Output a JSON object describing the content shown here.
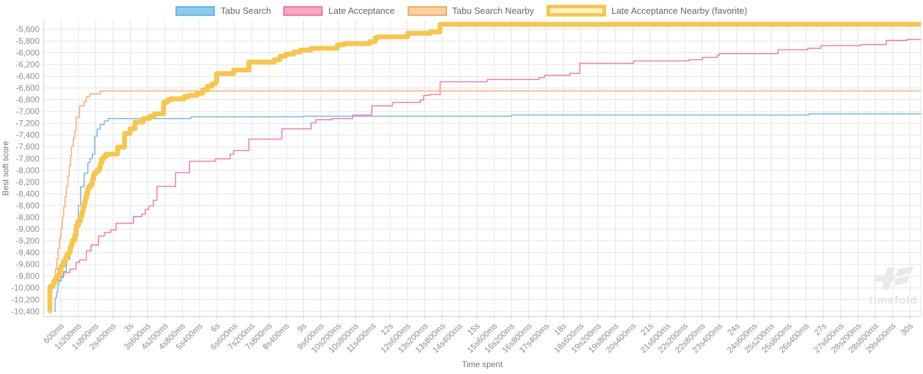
{
  "legend": {
    "items": [
      {
        "label": "Tabu Search",
        "line_color": "#68B1E4",
        "fill_color": "#8CCBF0",
        "favorite": false
      },
      {
        "label": "Late Acceptance",
        "line_color": "#F0739E",
        "fill_color": "#F8A8C0",
        "favorite": false
      },
      {
        "label": "Tabu Search Nearby",
        "line_color": "#F5A760",
        "fill_color": "#FAD0A0",
        "favorite": false
      },
      {
        "label": "Late Acceptance Nearby (favorite)",
        "line_color": "#F7C64B",
        "fill_color": "#FCF0C8",
        "favorite": true
      }
    ]
  },
  "watermark": {
    "text": "timefold"
  },
  "chart_data": {
    "type": "line",
    "step": true,
    "title": "",
    "xlabel": "Time spent",
    "ylabel": "Best soft score",
    "grid": true,
    "legend_position": "top",
    "xlim_ms": [
      0,
      30350
    ],
    "ylim": [
      -10400,
      -5515
    ],
    "x_tick_step_ms": 600,
    "x_ticks": [
      "600ms",
      "1s200ms",
      "1s800ms",
      "2s400ms",
      "3s",
      "3s600ms",
      "4s200ms",
      "4s800ms",
      "5s400ms",
      "6s",
      "6s600ms",
      "7s200ms",
      "7s800ms",
      "8s400ms",
      "9s",
      "9s600ms",
      "10s200ms",
      "10s800ms",
      "11s400ms",
      "12s",
      "12s600ms",
      "13s200ms",
      "13s800ms",
      "14s400ms",
      "15s",
      "15s600ms",
      "16s200ms",
      "16s800ms",
      "17s400ms",
      "18s",
      "18s600ms",
      "19s200ms",
      "19s800ms",
      "20s400ms",
      "21s",
      "21s600ms",
      "22s200ms",
      "22s800ms",
      "23s400ms",
      "24s",
      "24s600ms",
      "25s200ms",
      "25s800ms",
      "26s400ms",
      "27s",
      "27s600ms",
      "28s200ms",
      "28s800ms",
      "29s400ms",
      "30s"
    ],
    "y_tick_step": -200,
    "y_ticks": [
      "-5,600",
      "-5,800",
      "-6,000",
      "-6,200",
      "-6,400",
      "-6,600",
      "-6,800",
      "-7,000",
      "-7,200",
      "-7,400",
      "-7,600",
      "-7,800",
      "-8,000",
      "-8,200",
      "-8,400",
      "-8,600",
      "-8,800",
      "-9,000",
      "-9,200",
      "-9,400",
      "-9,600",
      "-9,800",
      "-10,000",
      "-10,200",
      "-10,400"
    ],
    "series": [
      {
        "name": "Tabu Search",
        "color": "#68B1E4",
        "width": 1.4,
        "final_score": -7040,
        "points": [
          [
            360,
            -10400
          ],
          [
            395,
            -10170
          ],
          [
            450,
            -10070
          ],
          [
            490,
            -9940
          ],
          [
            530,
            -9880
          ],
          [
            615,
            -9820
          ],
          [
            680,
            -9720
          ],
          [
            790,
            -9510
          ],
          [
            910,
            -9310
          ],
          [
            1000,
            -9150
          ],
          [
            1060,
            -9000
          ],
          [
            1125,
            -8860
          ],
          [
            1200,
            -8600
          ],
          [
            1280,
            -8280
          ],
          [
            1400,
            -8050
          ],
          [
            1530,
            -7870
          ],
          [
            1600,
            -7800
          ],
          [
            1685,
            -7725
          ],
          [
            1765,
            -7420
          ],
          [
            1850,
            -7300
          ],
          [
            1960,
            -7220
          ],
          [
            2100,
            -7160
          ],
          [
            2240,
            -7120
          ],
          [
            5100,
            -7090
          ],
          [
            9000,
            -7080
          ],
          [
            16200,
            -7060
          ],
          [
            26500,
            -7040
          ]
        ]
      },
      {
        "name": "Late Acceptance",
        "color": "#F0739E",
        "width": 1.4,
        "final_score": -5775,
        "points": [
          [
            190,
            -10350
          ],
          [
            215,
            -9955
          ],
          [
            290,
            -9865
          ],
          [
            530,
            -9805
          ],
          [
            700,
            -9740
          ],
          [
            910,
            -9680
          ],
          [
            1120,
            -9565
          ],
          [
            1245,
            -9525
          ],
          [
            1480,
            -9370
          ],
          [
            1640,
            -9270
          ],
          [
            1900,
            -9120
          ],
          [
            2100,
            -9060
          ],
          [
            2320,
            -9015
          ],
          [
            2510,
            -8900
          ],
          [
            3110,
            -8785
          ],
          [
            3400,
            -8745
          ],
          [
            3520,
            -8665
          ],
          [
            3640,
            -8605
          ],
          [
            3800,
            -8510
          ],
          [
            3920,
            -8275
          ],
          [
            4570,
            -8040
          ],
          [
            5050,
            -7845
          ],
          [
            5950,
            -7805
          ],
          [
            6460,
            -7725
          ],
          [
            6580,
            -7665
          ],
          [
            7105,
            -7470
          ],
          [
            8250,
            -7295
          ],
          [
            9260,
            -7195
          ],
          [
            9420,
            -7140
          ],
          [
            9980,
            -7120
          ],
          [
            10700,
            -7060
          ],
          [
            11360,
            -6905
          ],
          [
            12080,
            -6845
          ],
          [
            13040,
            -6805
          ],
          [
            13160,
            -6725
          ],
          [
            13370,
            -6710
          ],
          [
            13730,
            -6495
          ],
          [
            15360,
            -6455
          ],
          [
            17150,
            -6425
          ],
          [
            17345,
            -6385
          ],
          [
            18230,
            -6350
          ],
          [
            18565,
            -6180
          ],
          [
            20420,
            -6140
          ],
          [
            22340,
            -6120
          ],
          [
            22815,
            -6080
          ],
          [
            23325,
            -6045
          ],
          [
            23400,
            -6015
          ],
          [
            25430,
            -5950
          ],
          [
            26460,
            -5925
          ],
          [
            26915,
            -5880
          ],
          [
            28300,
            -5860
          ],
          [
            29180,
            -5790
          ],
          [
            29900,
            -5775
          ]
        ]
      },
      {
        "name": "Tabu Search Nearby",
        "color": "#F5A760",
        "width": 1.4,
        "final_score": -6650,
        "points": [
          [
            170,
            -10390
          ],
          [
            240,
            -10020
          ],
          [
            320,
            -9940
          ],
          [
            360,
            -9820
          ],
          [
            410,
            -9680
          ],
          [
            455,
            -9510
          ],
          [
            500,
            -9330
          ],
          [
            550,
            -9150
          ],
          [
            600,
            -8980
          ],
          [
            650,
            -8800
          ],
          [
            695,
            -8620
          ],
          [
            740,
            -8450
          ],
          [
            790,
            -8270
          ],
          [
            840,
            -8100
          ],
          [
            885,
            -7920
          ],
          [
            935,
            -7750
          ],
          [
            965,
            -7590
          ],
          [
            1030,
            -7450
          ],
          [
            1080,
            -7330
          ],
          [
            1125,
            -7100
          ],
          [
            1245,
            -6905
          ],
          [
            1400,
            -6830
          ],
          [
            1480,
            -6750
          ],
          [
            1600,
            -6700
          ],
          [
            1960,
            -6650
          ]
        ]
      },
      {
        "name": "Late Acceptance Nearby (favorite)",
        "color": "#F7C64B",
        "width": 7,
        "final_score": -5518,
        "points": [
          [
            170,
            -10390
          ],
          [
            215,
            -9980
          ],
          [
            320,
            -9940
          ],
          [
            360,
            -9880
          ],
          [
            440,
            -9820
          ],
          [
            520,
            -9765
          ],
          [
            560,
            -9685
          ],
          [
            600,
            -9625
          ],
          [
            680,
            -9550
          ],
          [
            760,
            -9490
          ],
          [
            800,
            -9430
          ],
          [
            880,
            -9390
          ],
          [
            920,
            -9310
          ],
          [
            960,
            -9250
          ],
          [
            1000,
            -9190
          ],
          [
            1080,
            -9095
          ],
          [
            1125,
            -8940
          ],
          [
            1205,
            -8860
          ],
          [
            1285,
            -8785
          ],
          [
            1325,
            -8705
          ],
          [
            1365,
            -8625
          ],
          [
            1405,
            -8550
          ],
          [
            1445,
            -8470
          ],
          [
            1485,
            -8390
          ],
          [
            1525,
            -8315
          ],
          [
            1565,
            -8275
          ],
          [
            1645,
            -8235
          ],
          [
            1685,
            -8155
          ],
          [
            1725,
            -8080
          ],
          [
            1765,
            -8040
          ],
          [
            1845,
            -8000
          ],
          [
            1925,
            -7960
          ],
          [
            1965,
            -7885
          ],
          [
            2005,
            -7805
          ],
          [
            2085,
            -7765
          ],
          [
            2160,
            -7725
          ],
          [
            2560,
            -7605
          ],
          [
            2800,
            -7375
          ],
          [
            2990,
            -7295
          ],
          [
            3160,
            -7180
          ],
          [
            3440,
            -7120
          ],
          [
            3680,
            -7080
          ],
          [
            3830,
            -7040
          ],
          [
            4155,
            -6845
          ],
          [
            4275,
            -6805
          ],
          [
            4395,
            -6785
          ],
          [
            4870,
            -6745
          ],
          [
            5025,
            -6725
          ],
          [
            5310,
            -6690
          ],
          [
            5500,
            -6630
          ],
          [
            5670,
            -6570
          ],
          [
            5835,
            -6530
          ],
          [
            5950,
            -6495
          ],
          [
            5990,
            -6355
          ],
          [
            6580,
            -6295
          ],
          [
            7105,
            -6160
          ],
          [
            7980,
            -6120
          ],
          [
            8180,
            -6060
          ],
          [
            8375,
            -6025
          ],
          [
            8660,
            -5985
          ],
          [
            8900,
            -5955
          ],
          [
            9260,
            -5925
          ],
          [
            10170,
            -5865
          ],
          [
            10405,
            -5845
          ],
          [
            11290,
            -5810
          ],
          [
            11485,
            -5750
          ],
          [
            11550,
            -5730
          ],
          [
            12605,
            -5670
          ],
          [
            13400,
            -5645
          ],
          [
            13725,
            -5518
          ]
        ]
      }
    ]
  }
}
